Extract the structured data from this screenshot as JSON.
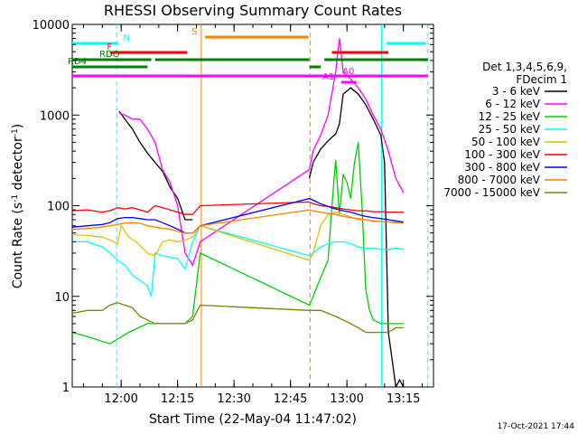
{
  "page": {
    "footer_timestamp": "17-Oct-2021 17:44"
  },
  "chart_data": {
    "type": "line",
    "title": "RHESSI Observing Summary Count Rates",
    "xlabel": "Start Time (22-May-04 11:47:02)",
    "ylabel_main": "Count Rate (s",
    "ylabel_sup": "-1",
    "ylabel_tail": " detector",
    "ylabel_end": ")",
    "x_unit": "minutes after 11:47:02",
    "xlim": [
      0,
      96
    ],
    "ylim": [
      1,
      10000
    ],
    "y_scale": "log",
    "y_ticks": [
      {
        "v": 1,
        "label": "1"
      },
      {
        "v": 10,
        "label": "10"
      },
      {
        "v": 100,
        "label": "100"
      },
      {
        "v": 1000,
        "label": "1000"
      },
      {
        "v": 10000,
        "label": "10000"
      }
    ],
    "x_ticks": [
      {
        "t": 13,
        "label": "12:00"
      },
      {
        "t": 28,
        "label": "12:15"
      },
      {
        "t": 43,
        "label": "12:30"
      },
      {
        "t": 58,
        "label": "12:45"
      },
      {
        "t": 73,
        "label": "13:00"
      },
      {
        "t": 88,
        "label": "13:15"
      }
    ],
    "legend": {
      "header": [
        "Det 1,3,4,5,6,9,",
        "FDecim 1"
      ],
      "placement": "right"
    },
    "series": [
      {
        "name": "3 - 6 keV",
        "color": "#000000",
        "points": [
          [
            12.5,
            1100
          ],
          [
            14,
            900
          ],
          [
            16,
            700
          ],
          [
            18,
            500
          ],
          [
            20,
            380
          ],
          [
            22,
            300
          ],
          [
            24,
            240
          ],
          [
            26,
            160
          ],
          [
            28,
            120
          ],
          [
            30,
            70
          ],
          [
            32,
            70
          ],
          [
            34,
            null
          ],
          [
            63,
            200
          ],
          [
            64,
            300
          ],
          [
            66,
            420
          ],
          [
            68,
            520
          ],
          [
            70,
            620
          ],
          [
            71,
            800
          ],
          [
            72,
            1700
          ],
          [
            74,
            2000
          ],
          [
            76,
            1700
          ],
          [
            78,
            1300
          ],
          [
            80,
            900
          ],
          [
            82,
            600
          ],
          [
            83,
            300
          ],
          [
            84,
            4
          ],
          [
            85,
            2
          ],
          [
            86,
            1
          ],
          [
            87,
            1.2
          ],
          [
            88,
            1
          ]
        ]
      },
      {
        "name": "6 - 12 keV",
        "color": "#ff00ff",
        "points": [
          [
            12.5,
            1050
          ],
          [
            14,
            1000
          ],
          [
            16,
            900
          ],
          [
            18,
            900
          ],
          [
            20,
            700
          ],
          [
            22,
            500
          ],
          [
            24,
            250
          ],
          [
            26,
            180
          ],
          [
            28,
            100
          ],
          [
            30,
            30
          ],
          [
            32,
            22
          ],
          [
            34,
            40
          ],
          [
            63,
            250
          ],
          [
            64,
            400
          ],
          [
            66,
            600
          ],
          [
            68,
            1000
          ],
          [
            70,
            3000
          ],
          [
            71,
            7000
          ],
          [
            72,
            3000
          ],
          [
            74,
            2500
          ],
          [
            76,
            2000
          ],
          [
            78,
            1500
          ],
          [
            80,
            1000
          ],
          [
            82,
            700
          ],
          [
            84,
            400
          ],
          [
            86,
            200
          ],
          [
            88,
            140
          ]
        ]
      },
      {
        "name": "12 - 25 keV",
        "color": "#00d000",
        "points": [
          [
            0,
            4
          ],
          [
            5,
            3.5
          ],
          [
            10,
            3
          ],
          [
            15,
            4
          ],
          [
            20,
            5
          ],
          [
            25,
            5
          ],
          [
            30,
            5
          ],
          [
            32,
            6
          ],
          [
            34,
            30
          ],
          [
            63,
            8
          ],
          [
            64,
            10
          ],
          [
            66,
            16
          ],
          [
            68,
            25
          ],
          [
            69,
            100
          ],
          [
            70,
            320
          ],
          [
            71,
            80
          ],
          [
            72,
            220
          ],
          [
            73,
            180
          ],
          [
            74,
            120
          ],
          [
            75,
            300
          ],
          [
            76,
            500
          ],
          [
            77,
            100
          ],
          [
            78,
            12
          ],
          [
            79,
            7
          ],
          [
            80,
            5.5
          ],
          [
            82,
            5
          ],
          [
            84,
            5
          ],
          [
            86,
            5
          ],
          [
            88,
            5
          ]
        ]
      },
      {
        "name": "25 - 50 keV",
        "color": "#00ffff",
        "points": [
          [
            0,
            40
          ],
          [
            4,
            40
          ],
          [
            8,
            35
          ],
          [
            10,
            30
          ],
          [
            12,
            25
          ],
          [
            14,
            22
          ],
          [
            16,
            17
          ],
          [
            18,
            15
          ],
          [
            20,
            13
          ],
          [
            21,
            10
          ],
          [
            22,
            30
          ],
          [
            24,
            28
          ],
          [
            26,
            27
          ],
          [
            28,
            26
          ],
          [
            30,
            20
          ],
          [
            32,
            40
          ],
          [
            34,
            60
          ],
          [
            63,
            28
          ],
          [
            64,
            30
          ],
          [
            66,
            35
          ],
          [
            68,
            38
          ],
          [
            70,
            40
          ],
          [
            72,
            40
          ],
          [
            74,
            38
          ],
          [
            76,
            35
          ],
          [
            78,
            34
          ],
          [
            80,
            34
          ],
          [
            82,
            33
          ],
          [
            84,
            33
          ],
          [
            86,
            34
          ],
          [
            88,
            33
          ]
        ]
      },
      {
        "name": "50 - 100 keV",
        "color": "#e0c000",
        "points": [
          [
            0,
            48
          ],
          [
            4,
            47
          ],
          [
            8,
            45
          ],
          [
            10,
            42
          ],
          [
            12,
            38
          ],
          [
            13,
            60
          ],
          [
            15,
            45
          ],
          [
            17,
            40
          ],
          [
            20,
            30
          ],
          [
            22,
            28
          ],
          [
            24,
            40
          ],
          [
            26,
            42
          ],
          [
            28,
            40
          ],
          [
            30,
            42
          ],
          [
            32,
            45
          ],
          [
            34,
            60
          ],
          [
            63,
            25
          ],
          [
            64,
            30
          ],
          [
            66,
            60
          ],
          [
            68,
            80
          ],
          [
            70,
            85
          ],
          [
            72,
            80
          ],
          [
            74,
            75
          ],
          [
            76,
            70
          ],
          [
            78,
            70
          ],
          [
            80,
            68
          ],
          [
            82,
            67
          ],
          [
            84,
            66
          ],
          [
            86,
            66
          ],
          [
            88,
            65
          ]
        ]
      },
      {
        "name": "100 - 300 keV",
        "color": "#ff0000",
        "points": [
          [
            0,
            88
          ],
          [
            4,
            90
          ],
          [
            8,
            85
          ],
          [
            10,
            88
          ],
          [
            12,
            95
          ],
          [
            14,
            92
          ],
          [
            16,
            95
          ],
          [
            18,
            90
          ],
          [
            20,
            85
          ],
          [
            22,
            100
          ],
          [
            24,
            95
          ],
          [
            26,
            90
          ],
          [
            28,
            85
          ],
          [
            30,
            80
          ],
          [
            32,
            80
          ],
          [
            34,
            100
          ],
          [
            63,
            110
          ],
          [
            64,
            105
          ],
          [
            66,
            100
          ],
          [
            68,
            98
          ],
          [
            70,
            95
          ],
          [
            72,
            92
          ],
          [
            74,
            90
          ],
          [
            76,
            88
          ],
          [
            78,
            88
          ],
          [
            80,
            86
          ],
          [
            82,
            86
          ],
          [
            84,
            85
          ],
          [
            86,
            85
          ],
          [
            88,
            85
          ]
        ]
      },
      {
        "name": "300 - 800 keV",
        "color": "#0000ff",
        "points": [
          [
            0,
            58
          ],
          [
            4,
            60
          ],
          [
            8,
            62
          ],
          [
            10,
            65
          ],
          [
            12,
            72
          ],
          [
            14,
            74
          ],
          [
            16,
            74
          ],
          [
            18,
            72
          ],
          [
            20,
            70
          ],
          [
            22,
            70
          ],
          [
            24,
            65
          ],
          [
            26,
            60
          ],
          [
            28,
            55
          ],
          [
            30,
            50
          ],
          [
            32,
            50
          ],
          [
            34,
            60
          ],
          [
            63,
            120
          ],
          [
            64,
            115
          ],
          [
            66,
            105
          ],
          [
            68,
            98
          ],
          [
            70,
            92
          ],
          [
            72,
            88
          ],
          [
            74,
            85
          ],
          [
            76,
            80
          ],
          [
            78,
            76
          ],
          [
            80,
            74
          ],
          [
            82,
            72
          ],
          [
            84,
            70
          ],
          [
            86,
            68
          ],
          [
            88,
            66
          ]
        ]
      },
      {
        "name": "800 - 7000 keV",
        "color": "#ff8000",
        "points": [
          [
            0,
            55
          ],
          [
            4,
            56
          ],
          [
            8,
            58
          ],
          [
            10,
            60
          ],
          [
            12,
            62
          ],
          [
            14,
            64
          ],
          [
            16,
            65
          ],
          [
            18,
            64
          ],
          [
            20,
            60
          ],
          [
            22,
            58
          ],
          [
            24,
            56
          ],
          [
            26,
            55
          ],
          [
            28,
            52
          ],
          [
            30,
            50
          ],
          [
            32,
            50
          ],
          [
            34,
            60
          ],
          [
            63,
            90
          ],
          [
            64,
            88
          ],
          [
            66,
            85
          ],
          [
            68,
            82
          ],
          [
            70,
            80
          ],
          [
            72,
            76
          ],
          [
            74,
            74
          ],
          [
            76,
            72
          ],
          [
            78,
            70
          ],
          [
            80,
            68
          ],
          [
            82,
            67
          ],
          [
            84,
            66
          ],
          [
            86,
            65
          ],
          [
            88,
            64
          ]
        ]
      },
      {
        "name": "7000 - 15000 keV",
        "color": "#808000",
        "points": [
          [
            0,
            6.5
          ],
          [
            4,
            7
          ],
          [
            8,
            7
          ],
          [
            10,
            8
          ],
          [
            12,
            8.5
          ],
          [
            14,
            8
          ],
          [
            16,
            7.5
          ],
          [
            18,
            6
          ],
          [
            20,
            5.5
          ],
          [
            22,
            5
          ],
          [
            24,
            5
          ],
          [
            26,
            5
          ],
          [
            28,
            5
          ],
          [
            30,
            5
          ],
          [
            32,
            5.5
          ],
          [
            34,
            8
          ],
          [
            63,
            7
          ],
          [
            64,
            7
          ],
          [
            66,
            7
          ],
          [
            68,
            6.5
          ],
          [
            70,
            6
          ],
          [
            72,
            5.5
          ],
          [
            74,
            5
          ],
          [
            76,
            4.5
          ],
          [
            78,
            4
          ],
          [
            80,
            4
          ],
          [
            82,
            4
          ],
          [
            84,
            4
          ],
          [
            86,
            4.5
          ],
          [
            88,
            4.5
          ]
        ]
      }
    ],
    "vertical_markers": [
      {
        "t": 11.8,
        "color": "#00ffff",
        "style": "dashed"
      },
      {
        "t": 34.3,
        "color": "#ff8000",
        "style": "solid"
      },
      {
        "t": 63.2,
        "color": "#ff8000",
        "style": "dashed"
      },
      {
        "t": 82.2,
        "color": "#00ffff",
        "style": "solid"
      },
      {
        "t": 94.5,
        "color": "#00ffff",
        "style": "dashed"
      }
    ],
    "flag_bars": [
      {
        "label": "N",
        "color": "#00ffff",
        "segments": [
          [
            0,
            12.2
          ],
          [
            83.5,
            94
          ]
        ],
        "level": "N"
      },
      {
        "label": "S",
        "color": "#ff8000",
        "segments": [
          [
            35.3,
            62.8
          ]
        ],
        "level": "S"
      },
      {
        "label": "F",
        "color": "#ff0000",
        "segments": [
          [
            10,
            30.5
          ],
          [
            69,
            84
          ]
        ],
        "level": "F"
      },
      {
        "label": "RDO",
        "color": "#008000",
        "segments": [
          [
            0,
            8
          ],
          [
            8,
            21
          ],
          [
            22,
            63
          ],
          [
            67,
            94.5
          ]
        ],
        "level": "RDO"
      },
      {
        "label": "RD4",
        "color": "#008000",
        "segments": [
          [
            0,
            20
          ],
          [
            63,
            66
          ]
        ],
        "level": "RD4"
      },
      {
        "label": "A1",
        "color": "#ff00ff",
        "segments": [
          [
            0,
            94.5
          ]
        ],
        "level": "A1"
      },
      {
        "label": "A0",
        "color": "#ff00ff",
        "segments": [
          [
            71.5,
            75.5
          ]
        ],
        "level": "A0"
      }
    ]
  }
}
